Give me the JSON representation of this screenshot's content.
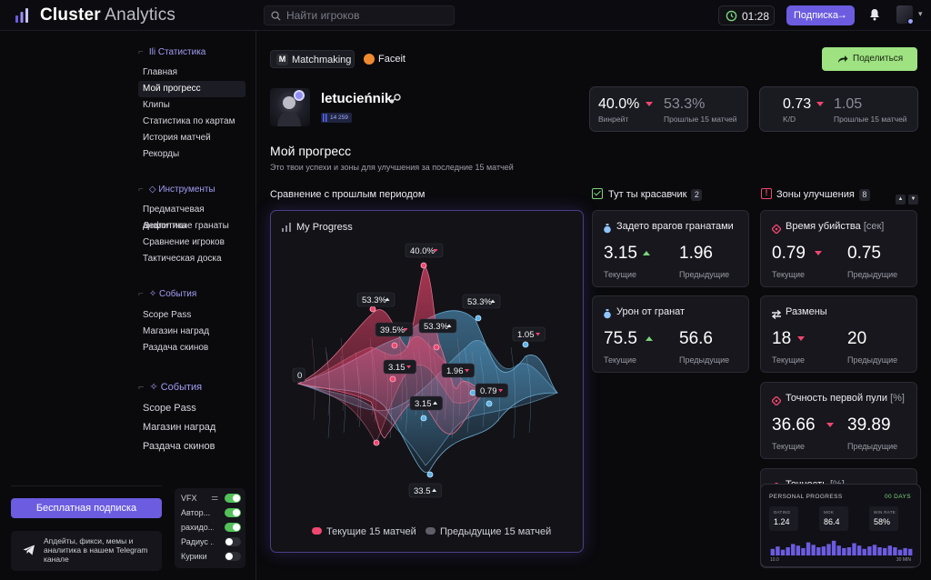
{
  "app": {
    "brand_bold": "Cluster",
    "brand_light": " Analytics"
  },
  "header": {
    "search_placeholder": "Найти игроков",
    "timer": "01:28",
    "subscribe_label": "Подписка"
  },
  "sidebar": {
    "sections": [
      {
        "title": "Статистика",
        "items": [
          "Главная",
          "Мой прогресс",
          "Клипы",
          "Статистика по картам",
          "История матчей",
          "Рекорды"
        ]
      },
      {
        "title": "Инструменты",
        "items": [
          "Предматчевая аналитика",
          "Дефолтные гранаты",
          "Сравнение игроков",
          "Тактическая доска"
        ]
      },
      {
        "title": "События",
        "items": [
          "Scope Pass",
          "Магазин наград",
          "Раздача скинов"
        ]
      },
      {
        "title": "События",
        "items": [
          "Scope Pass",
          "Магазин наград",
          "Раздача скинов"
        ]
      }
    ],
    "active_item": "Мой прогресс",
    "free_sub_label": "Бесплатная подписка",
    "telegram_text": "Апдейты, фикси, мемы и аналитика в нашем Telegram канале",
    "toggles": [
      {
        "label": "VFX",
        "on": true
      },
      {
        "label": "Автор...",
        "on": true
      },
      {
        "label": "рахидо...",
        "on": true
      },
      {
        "label": "Радиус ...",
        "on": false
      },
      {
        "label": "Курики",
        "on": false
      }
    ]
  },
  "main": {
    "tabs": [
      {
        "label": "Matchmaking",
        "icon": "M"
      },
      {
        "label": "Faceit"
      }
    ],
    "share_label": "Поделиться",
    "player": {
      "name": "letucieńnik",
      "elo": "14 259"
    },
    "title": "Мой прогресс",
    "subtitle": "Это твои успехи и зоны для улучшения за последние 15 матчей",
    "kpis": [
      {
        "current": "40.0%",
        "current_label": "Винрейт",
        "previous": "53.3%",
        "previous_label": "Прошлые 15 матчей"
      },
      {
        "current": "0.73",
        "current_label": "K/D",
        "previous": "1.05",
        "previous_label": "Прошлые 15 матчей"
      }
    ],
    "comparison_title": "Сравнение с прошлым периодом",
    "good_title": "Тут ты красавчик",
    "good_count": "2",
    "improve_title": "Зоны улучшения",
    "improve_count": "8"
  },
  "chart_data": {
    "type": "radar",
    "title": "My Progress",
    "center_label": "0",
    "series": [
      {
        "name": "Текущие 15 матчей",
        "color": "#ef476f",
        "labels": [
          "40.0%",
          "0.79",
          "33.5",
          "39.5%",
          "3.15",
          "53.3%"
        ]
      },
      {
        "name": "Предыдущие 15 матчей",
        "color": "#5fb3e6",
        "labels": [
          "53.3%",
          "1.05",
          "1.96",
          "3.15"
        ]
      }
    ],
    "point_labels": [
      "40.0%",
      "53.3%",
      "39.5%",
      "53.3%",
      "53.3%",
      "1.05",
      "3.15",
      "1.96",
      "3.15",
      "0.79",
      "33.5",
      "0"
    ]
  },
  "good_cards": [
    {
      "title": "Задето врагов гранатами",
      "current": "3.15",
      "previous": "1.96",
      "trend": "up"
    },
    {
      "title": "Урон от гранат",
      "current": "75.5",
      "previous": "56.6",
      "trend": "up"
    }
  ],
  "improve_cards": [
    {
      "title": "Время убийства",
      "unit": "[сек]",
      "current": "0.79",
      "previous": "0.75",
      "trend": "down"
    },
    {
      "title": "Размены",
      "unit": "",
      "current": "18",
      "previous": "20",
      "trend": "down"
    },
    {
      "title": "Точность первой пули",
      "unit": "[%]",
      "current": "36.66",
      "previous": "39.89",
      "trend": "down"
    },
    {
      "title": "Точность",
      "unit": "[%]"
    }
  ],
  "labels": {
    "current": "Текущие",
    "previous": "Предыдущие"
  },
  "personal_progress": {
    "title": "PERSONAL PROGRESS",
    "days": "00 DAYS",
    "stats": [
      {
        "label": "DATING",
        "value": "1.24"
      },
      {
        "label": "MOK",
        "value": "86.4"
      },
      {
        "label": "WIN RATE",
        "value": "58%"
      }
    ],
    "x_start": "10.0",
    "x_end": "30 MIN",
    "bars": [
      0.4,
      0.55,
      0.35,
      0.5,
      0.7,
      0.6,
      0.45,
      0.8,
      0.65,
      0.5,
      0.55,
      0.7,
      0.9,
      0.6,
      0.45,
      0.5,
      0.75,
      0.6,
      0.4,
      0.55,
      0.65,
      0.5,
      0.45,
      0.6,
      0.5,
      0.35,
      0.45,
      0.4
    ]
  }
}
